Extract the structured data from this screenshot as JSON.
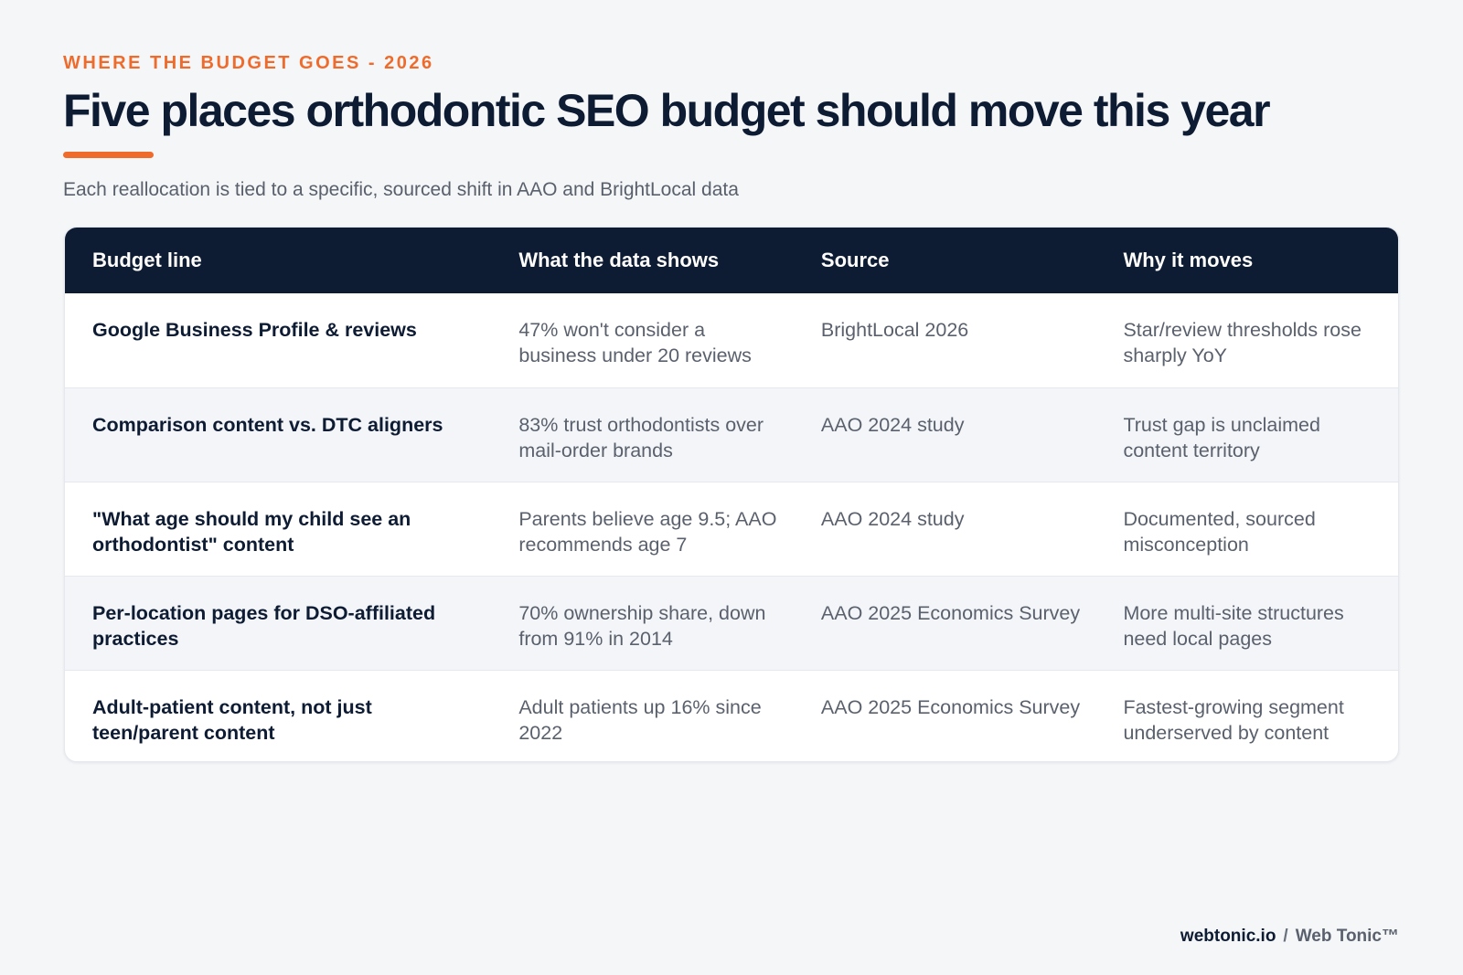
{
  "header": {
    "eyebrow": "WHERE THE BUDGET GOES - 2026",
    "title": "Five places orthodontic SEO budget should move this year",
    "subtitle": "Each reallocation is tied to a specific, sourced shift in AAO and BrightLocal data"
  },
  "table": {
    "columns": [
      "Budget line",
      "What the data shows",
      "Source",
      "Why it moves"
    ],
    "rows": [
      {
        "budget_line": "Google Business Profile & reviews",
        "data_shows": "47% won't consider a business under 20 reviews",
        "source": "BrightLocal 2026",
        "why": "Star/review thresholds rose sharply YoY"
      },
      {
        "budget_line": "Comparison content vs. DTC aligners",
        "data_shows": "83% trust orthodontists over mail-order brands",
        "source": "AAO 2024 study",
        "why": "Trust gap is unclaimed content territory"
      },
      {
        "budget_line": "\"What age should my child see an orthodontist\" content",
        "data_shows": "Parents believe age 9.5; AAO recommends age 7",
        "source": "AAO 2024 study",
        "why": "Documented, sourced misconception"
      },
      {
        "budget_line": "Per-location pages for DSO-affiliated practices",
        "data_shows": "70% ownership share, down from 91% in 2014",
        "source": "AAO 2025 Economics Survey",
        "why": "More multi-site structures need local pages"
      },
      {
        "budget_line": "Adult-patient content, not just teen/parent content",
        "data_shows": "Adult patients up 16% since 2022",
        "source": "AAO 2025 Economics Survey",
        "why": "Fastest-growing segment underserved by content"
      }
    ]
  },
  "footer": {
    "domain": "webtonic.io",
    "separator": "/",
    "brand": "Web Tonic™"
  },
  "colors": {
    "accent": "#ef6b2b",
    "navy": "#0d1b33",
    "background": "#f5f6f8"
  }
}
